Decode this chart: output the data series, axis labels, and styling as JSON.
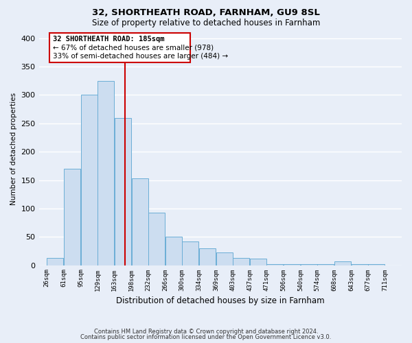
{
  "title1": "32, SHORTHEATH ROAD, FARNHAM, GU9 8SL",
  "title2": "Size of property relative to detached houses in Farnham",
  "xlabel": "Distribution of detached houses by size in Farnham",
  "ylabel": "Number of detached properties",
  "bar_left_edges": [
    26,
    61,
    95,
    129,
    163,
    198,
    232,
    266,
    300,
    334,
    369,
    403,
    437,
    471,
    506,
    540,
    574,
    608,
    643,
    677
  ],
  "bar_heights": [
    13,
    170,
    300,
    325,
    260,
    153,
    92,
    50,
    42,
    30,
    23,
    13,
    11,
    2,
    2,
    2,
    2,
    7,
    2,
    2
  ],
  "bin_width": 34,
  "tick_labels": [
    "26sqm",
    "61sqm",
    "95sqm",
    "129sqm",
    "163sqm",
    "198sqm",
    "232sqm",
    "266sqm",
    "300sqm",
    "334sqm",
    "369sqm",
    "403sqm",
    "437sqm",
    "471sqm",
    "506sqm",
    "540sqm",
    "574sqm",
    "608sqm",
    "643sqm",
    "677sqm",
    "711sqm"
  ],
  "tick_positions": [
    26,
    61,
    95,
    129,
    163,
    198,
    232,
    266,
    300,
    334,
    369,
    403,
    437,
    471,
    506,
    540,
    574,
    608,
    643,
    677,
    711
  ],
  "bar_color": "#ccddf0",
  "bar_edge_color": "#6baed6",
  "vline_x": 185,
  "vline_color": "#cc0000",
  "ylim": [
    0,
    410
  ],
  "yticks": [
    0,
    50,
    100,
    150,
    200,
    250,
    300,
    350,
    400
  ],
  "annotation_title": "32 SHORTHEATH ROAD: 185sqm",
  "annotation_line1": "← 67% of detached houses are smaller (978)",
  "annotation_line2": "33% of semi-detached houses are larger (484) →",
  "footer1": "Contains HM Land Registry data © Crown copyright and database right 2024.",
  "footer2": "Contains public sector information licensed under the Open Government Licence v3.0.",
  "bg_color": "#e8eef8",
  "plot_bg_color": "#e8eef8",
  "grid_color": "#ffffff"
}
